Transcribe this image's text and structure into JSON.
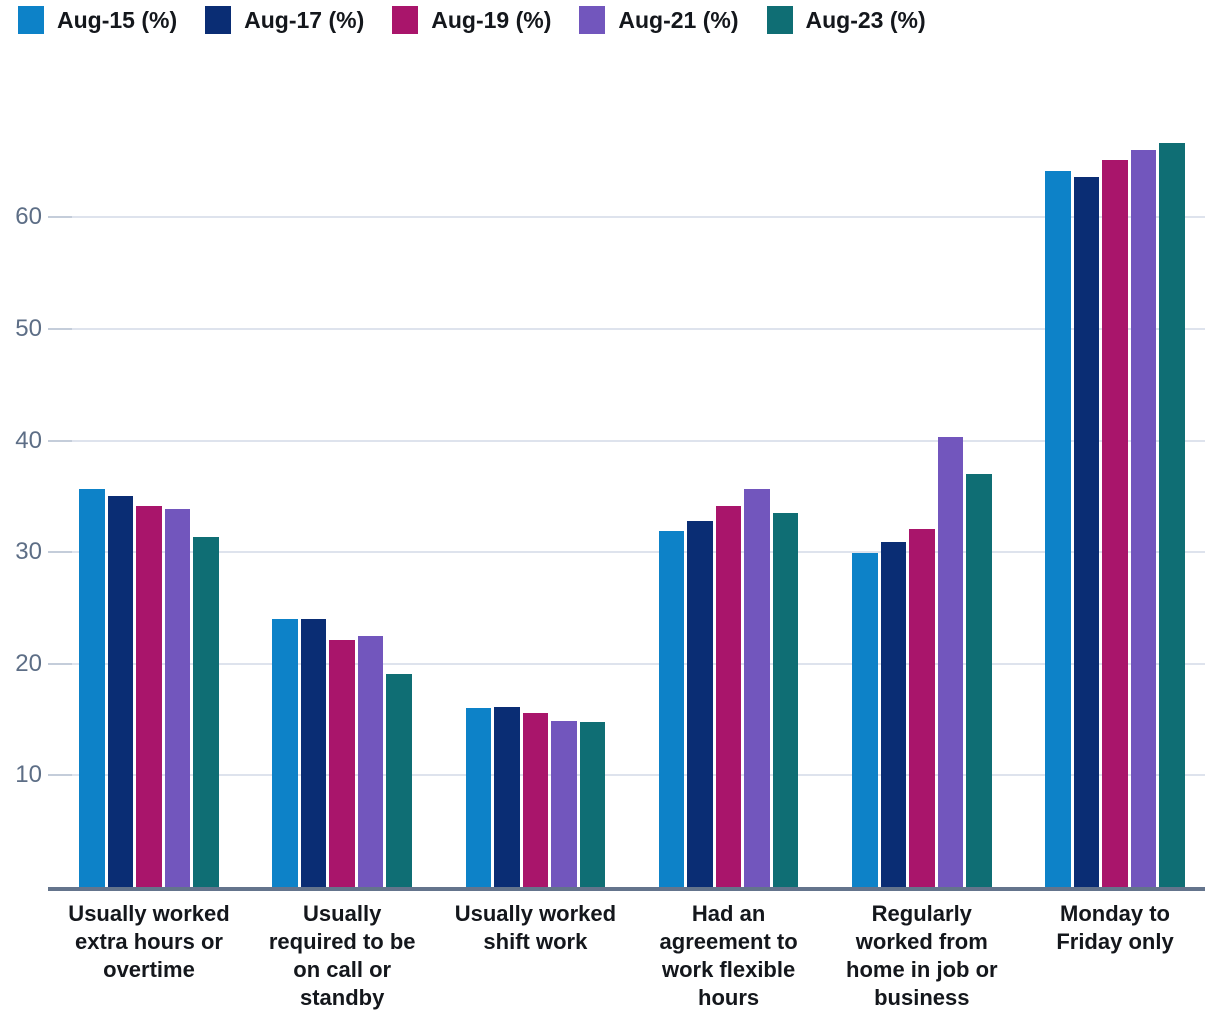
{
  "legend": {
    "position": "top-left",
    "items": [
      {
        "label": "Aug-15 (%)",
        "color": "#0d82c8"
      },
      {
        "label": "Aug-17 (%)",
        "color": "#0a2d74"
      },
      {
        "label": "Aug-19 (%)",
        "color": "#a9156b"
      },
      {
        "label": "Aug-21 (%)",
        "color": "#7256bd"
      },
      {
        "label": "Aug-23 (%)",
        "color": "#0f6e74"
      }
    ]
  },
  "chart_data": {
    "type": "bar",
    "title": "",
    "xlabel": "",
    "ylabel": "",
    "categories": [
      "Usually worked extra hours or overtime",
      "Usually required to be on call or standby",
      "Usually worked shift work",
      "Had an agreement to work flexible hours",
      "Regularly worked from home in job or business",
      "Monday to Friday only"
    ],
    "category_lines": [
      [
        "Usually worked",
        "extra hours or",
        "overtime"
      ],
      [
        "Usually",
        "required to be",
        "on call or",
        "standby"
      ],
      [
        "Usually worked",
        "shift work"
      ],
      [
        "Had an",
        "agreement to",
        "work flexible",
        "hours"
      ],
      [
        "Regularly",
        "worked from",
        "home in job or",
        "business"
      ],
      [
        "Monday to",
        "Friday only"
      ]
    ],
    "series": [
      {
        "name": "Aug-15 (%)",
        "color": "#0d82c8",
        "values": [
          35.7,
          24.0,
          16.0,
          31.9,
          29.9,
          64.2
        ]
      },
      {
        "name": "Aug-17 (%)",
        "color": "#0a2d74",
        "values": [
          35.0,
          24.0,
          16.1,
          32.8,
          30.9,
          63.6
        ]
      },
      {
        "name": "Aug-19 (%)",
        "color": "#a9156b",
        "values": [
          34.1,
          22.1,
          15.6,
          34.1,
          32.1,
          65.1
        ]
      },
      {
        "name": "Aug-21 (%)",
        "color": "#7256bd",
        "values": [
          33.9,
          22.5,
          14.9,
          35.7,
          40.3,
          66.0
        ]
      },
      {
        "name": "Aug-23 (%)",
        "color": "#0f6e74",
        "values": [
          31.4,
          19.1,
          14.8,
          33.5,
          37.0,
          66.7
        ]
      }
    ],
    "yticks": [
      10,
      20,
      30,
      40,
      50,
      60
    ],
    "ylim": [
      0,
      70
    ],
    "grid": true,
    "legend_position": "top"
  },
  "colors": {
    "background": "#ffffff",
    "axis_line": "#64748c",
    "gridline": "#dee3ed",
    "tick_dash": "#c4cdda",
    "y_tick_text": "#5d6e86",
    "category_text": "#14171c",
    "legend_text": "#14171c"
  }
}
